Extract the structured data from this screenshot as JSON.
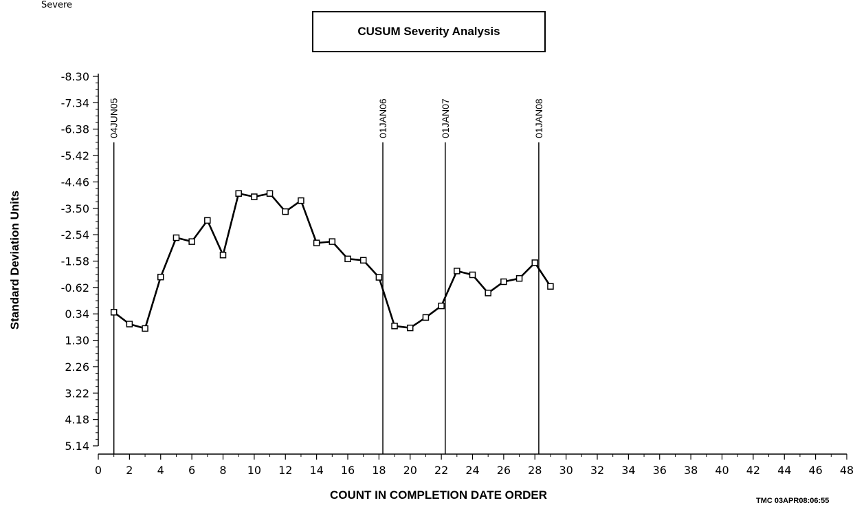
{
  "corner_label": "Severe",
  "footnote": "TMC  03APR08:06:55",
  "chart_data": {
    "type": "line",
    "title": "CUSUM Severity Analysis",
    "xlabel": "COUNT IN COMPLETION DATE ORDER",
    "ylabel": "Standard Deviation Units",
    "xlim": [
      0,
      48
    ],
    "ylim": [
      5.14,
      -8.3
    ],
    "y_reversed": true,
    "xticks": [
      0,
      2,
      4,
      6,
      8,
      10,
      12,
      14,
      16,
      18,
      20,
      22,
      24,
      26,
      28,
      30,
      32,
      34,
      36,
      38,
      40,
      42,
      44,
      46,
      48
    ],
    "yticks": [
      "-8.30",
      "-7.34",
      "-6.38",
      "-5.42",
      "-4.46",
      "-3.50",
      "-2.54",
      "-1.58",
      "-0.62",
      "0.34",
      "1.30",
      "2.26",
      "3.22",
      "4.18",
      "5.14"
    ],
    "grid": false,
    "series": [
      {
        "marker": "square",
        "color": "#000000",
        "x": [
          1,
          2,
          3,
          4,
          5,
          6,
          7,
          8,
          9,
          10,
          11,
          12,
          13,
          14,
          15,
          16,
          17,
          18,
          19,
          20,
          21,
          22,
          23,
          24,
          25,
          26,
          27,
          28,
          29
        ],
        "y": [
          0.28,
          0.71,
          0.87,
          -1.0,
          -2.43,
          -2.29,
          -3.06,
          -1.8,
          -4.04,
          -3.92,
          -4.04,
          -3.38,
          -3.78,
          -2.24,
          -2.29,
          -1.66,
          -1.61,
          -0.99,
          0.78,
          0.85,
          0.47,
          0.05,
          -1.22,
          -1.08,
          -0.42,
          -0.83,
          -0.95,
          -1.52,
          -0.66
        ]
      }
    ],
    "reference_lines": [
      {
        "x": 1,
        "label": "04JUN05"
      },
      {
        "x": 18.25,
        "label": "01JAN06"
      },
      {
        "x": 22.25,
        "label": "01JAN07"
      },
      {
        "x": 28.25,
        "label": "01JAN08"
      }
    ]
  }
}
